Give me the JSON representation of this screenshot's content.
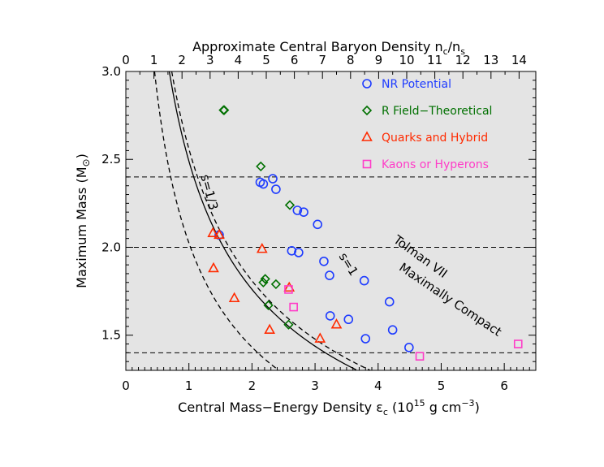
{
  "chart_data": {
    "type": "scatter",
    "xlabel": "Central Mass−Energy Density ε",
    "xlabel_sub": "c",
    "xlabel_units_pre": " (10",
    "xlabel_units_exp1": "15",
    "xlabel_units_mid": " g cm",
    "xlabel_units_exp2": "−3",
    "xlabel_units_post": ")",
    "ylabel": "Maximum Mass (M",
    "ylabel_sub": "⊙",
    "ylabel_post": ")",
    "top_axis_label_pre": "Approximate Central Baryon Density n",
    "top_axis_label_sub1": "c",
    "top_axis_label_mid": "/n",
    "top_axis_label_sub2": "s",
    "xlim": [
      0,
      6.5
    ],
    "ylim": [
      1.3,
      3.0
    ],
    "x_ticks": [
      "0",
      "1",
      "2",
      "3",
      "4",
      "5",
      "6"
    ],
    "y_ticks": [
      "1.5",
      "2.0",
      "2.5",
      "3.0"
    ],
    "top_ticks": [
      "0",
      "1",
      "2",
      "3",
      "4",
      "5",
      "6",
      "7",
      "8",
      "9",
      "10",
      "11",
      "12",
      "13",
      "14"
    ],
    "background": "#e4e4e4",
    "horizontal_lines": [
      1.4,
      2.0,
      2.4
    ],
    "series": [
      {
        "name": "NR Potential",
        "marker": "circle",
        "color": "#1e3cff",
        "points": [
          [
            1.48,
            2.07
          ],
          [
            2.13,
            2.37
          ],
          [
            2.18,
            2.36
          ],
          [
            2.33,
            2.39
          ],
          [
            2.38,
            2.33
          ],
          [
            2.72,
            2.21
          ],
          [
            2.82,
            2.2
          ],
          [
            3.04,
            2.13
          ],
          [
            2.63,
            1.98
          ],
          [
            2.74,
            1.97
          ],
          [
            3.14,
            1.92
          ],
          [
            3.23,
            1.84
          ],
          [
            3.78,
            1.81
          ],
          [
            4.18,
            1.69
          ],
          [
            3.24,
            1.61
          ],
          [
            3.53,
            1.59
          ],
          [
            3.8,
            1.48
          ],
          [
            4.23,
            1.53
          ],
          [
            4.49,
            1.43
          ]
        ]
      },
      {
        "name": "R Field−Theoretical",
        "marker": "diamond",
        "color": "#007000",
        "points": [
          [
            1.55,
            2.78
          ],
          [
            1.56,
            2.78
          ],
          [
            2.14,
            2.46
          ],
          [
            2.6,
            2.24
          ],
          [
            2.18,
            1.8
          ],
          [
            2.21,
            1.82
          ],
          [
            2.38,
            1.79
          ],
          [
            2.26,
            1.67
          ],
          [
            2.58,
            1.56
          ]
        ]
      },
      {
        "name": "Quarks and Hybrid",
        "marker": "triangle",
        "color": "#ff2a00",
        "points": [
          [
            1.38,
            2.08
          ],
          [
            1.48,
            2.07
          ],
          [
            2.16,
            1.99
          ],
          [
            1.39,
            1.88
          ],
          [
            1.72,
            1.71
          ],
          [
            2.28,
            1.53
          ],
          [
            3.08,
            1.48
          ],
          [
            3.34,
            1.56
          ],
          [
            2.59,
            1.77
          ]
        ]
      },
      {
        "name": "Kaons or Hyperons",
        "marker": "square",
        "color": "#ff3cc8",
        "points": [
          [
            2.58,
            1.76
          ],
          [
            2.66,
            1.66
          ],
          [
            4.66,
            1.38
          ],
          [
            6.22,
            1.45
          ]
        ]
      }
    ],
    "curves": [
      {
        "label": "s=1/3",
        "style": "dashed",
        "k": 4.1
      },
      {
        "label": "s=1",
        "style": "solid",
        "k": 6.2
      },
      {
        "label": "Maximally Compact",
        "style": "solid",
        "k": 6.2
      },
      {
        "label": "Tolman VII",
        "style": "dashed",
        "k": 6.55
      }
    ]
  }
}
